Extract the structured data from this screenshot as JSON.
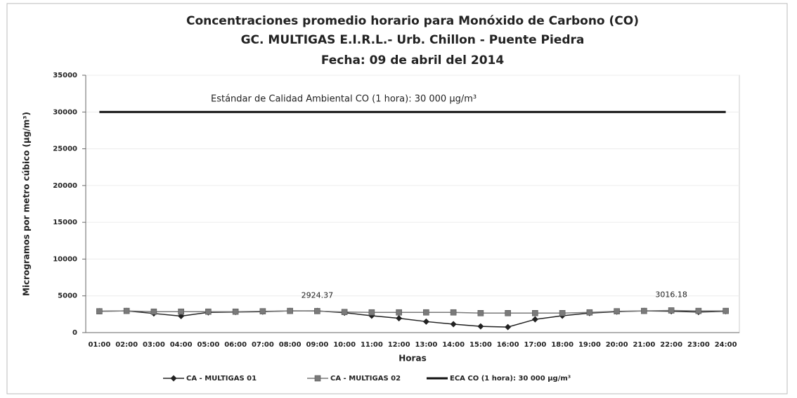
{
  "chart_data": {
    "type": "line",
    "title": [
      "Concentraciones promedio horario para Monóxido de Carbono (CO)",
      "GC. MULTIGAS E.I.R.L.- Urb. Chillon - Puente Piedra",
      "Fecha: 09 de abril del 2014"
    ],
    "annotation": "Estándar de Calidad Ambiental  CO (1 hora): 30 000 µg/m³",
    "x_label": "Horas",
    "y_label": "Microgramos por metro cúbico (µg/m³)",
    "categories": [
      "01:00",
      "02:00",
      "03:00",
      "04:00",
      "05:00",
      "06:00",
      "07:00",
      "08:00",
      "09:00",
      "10:00",
      "11:00",
      "12:00",
      "13:00",
      "14:00",
      "15:00",
      "16:00",
      "17:00",
      "18:00",
      "19:00",
      "20:00",
      "21:00",
      "22:00",
      "23:00",
      "24:00"
    ],
    "series": [
      {
        "name": "CA - MULTIGAS 01",
        "color": "#222222",
        "marker": "diamond",
        "values": [
          2900,
          2950,
          2600,
          2250,
          2750,
          2800,
          2850,
          2950,
          2950,
          2700,
          2300,
          1950,
          1500,
          1150,
          850,
          750,
          1800,
          2300,
          2650,
          2850,
          2950,
          2900,
          2800,
          2900
        ]
      },
      {
        "name": "CA - MULTIGAS 02",
        "color": "#7a7a7a",
        "marker": "square",
        "values": [
          2900,
          2950,
          2850,
          2850,
          2850,
          2850,
          2900,
          2950,
          2924.37,
          2800,
          2750,
          2750,
          2750,
          2750,
          2650,
          2650,
          2650,
          2650,
          2750,
          2900,
          2950,
          3016.18,
          2950,
          2950
        ],
        "value_labels": [
          null,
          null,
          null,
          null,
          null,
          null,
          null,
          null,
          "2924.37",
          null,
          null,
          null,
          null,
          null,
          null,
          null,
          null,
          null,
          null,
          null,
          null,
          "3016.18",
          null,
          null
        ]
      },
      {
        "name": "ECA CO (1 hora): 30 000 µg/m³",
        "color": "#111111",
        "marker": "none",
        "width": 3,
        "values": [
          30000,
          30000,
          30000,
          30000,
          30000,
          30000,
          30000,
          30000,
          30000,
          30000,
          30000,
          30000,
          30000,
          30000,
          30000,
          30000,
          30000,
          30000,
          30000,
          30000,
          30000,
          30000,
          30000,
          30000
        ]
      }
    ],
    "ylim": [
      0,
      35000
    ],
    "yticks": [
      0,
      5000,
      10000,
      15000,
      20000,
      25000,
      30000,
      35000
    ],
    "grid": true,
    "legend": "bottom"
  }
}
